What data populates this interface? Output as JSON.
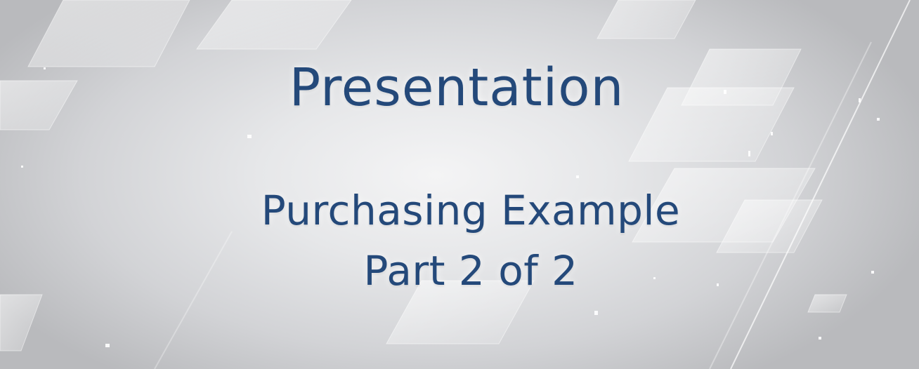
{
  "slide": {
    "title": "Presentation",
    "subtitle_line_1": "Purchasing Example",
    "subtitle_line_2": "Part 2 of 2"
  },
  "colors": {
    "text": "#24497a",
    "background_light": "#f4f4f5",
    "background_dark": "#b9babd"
  }
}
